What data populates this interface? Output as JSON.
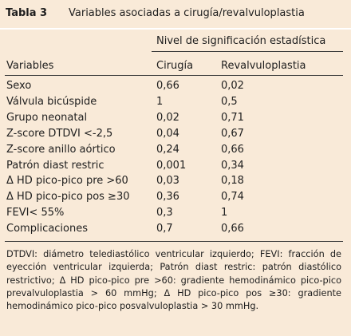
{
  "table_label": "Tabla 3",
  "table_title": "Variables asociadas a cirugía/revalvuloplastia",
  "group_header": "Nivel de significación estadística",
  "columns": [
    "Variables",
    "Cirugía",
    "Revalvuloplastia"
  ],
  "rows": [
    {
      "variable": "Sexo",
      "cirugia": "0,66",
      "revalvuloplastia": "0,02"
    },
    {
      "variable": "Válvula bicúspide",
      "cirugia": "1",
      "revalvuloplastia": "0,5"
    },
    {
      "variable": "Grupo neonatal",
      "cirugia": "0,02",
      "revalvuloplastia": "0,71"
    },
    {
      "variable": "Z-score DTDVI <-2,5",
      "cirugia": "0,04",
      "revalvuloplastia": "0,67"
    },
    {
      "variable": "Z-score anillo aórtico",
      "cirugia": "0,24",
      "revalvuloplastia": "0,66"
    },
    {
      "variable": "Patrón diast restric",
      "cirugia": "0,001",
      "revalvuloplastia": "0,34"
    },
    {
      "variable": "Δ HD pico-pico pre >60",
      "cirugia": "0,03",
      "revalvuloplastia": "0,18"
    },
    {
      "variable": "Δ HD pico-pico pos ≥30",
      "cirugia": "0,36",
      "revalvuloplastia": "0,74"
    },
    {
      "variable": "FEVI< 55%",
      "cirugia": "0,3",
      "revalvuloplastia": "1"
    },
    {
      "variable": "Complicaciones",
      "cirugia": "0,7",
      "revalvuloplastia": "0,66"
    }
  ],
  "footnote": "DTDVI: diámetro telediastólico ventricular izquierdo; FEVI: fracción de eyección ventricular izquierda; Patrón diast restric: patrón diastólico restrictivo; Δ HD pico-pico pre >60: gradiente hemodinámico pico-pico prevalvuloplastia > 60 mmHg; Δ HD pico-pico pos ≥30: gradiente hemodinámico pico-pico posvalvuloplastia > 30 mmHg."
}
